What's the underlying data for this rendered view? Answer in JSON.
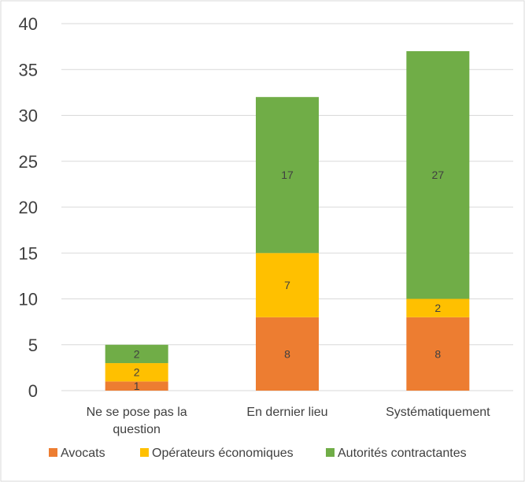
{
  "chart_data": {
    "type": "bar",
    "stacked": true,
    "categories": [
      "Ne se pose pas la question",
      "En dernier lieu",
      "Systématiquement"
    ],
    "category_lines": [
      [
        "Ne se pose pas la",
        "question"
      ],
      [
        "En dernier lieu"
      ],
      [
        "Systématiquement"
      ]
    ],
    "series": [
      {
        "name": "Avocats",
        "values": [
          1,
          8,
          8
        ],
        "color": "#ED7D31"
      },
      {
        "name": "Opérateurs économiques",
        "values": [
          2,
          7,
          2
        ],
        "color": "#FFC000"
      },
      {
        "name": "Autorités contractantes",
        "values": [
          2,
          17,
          27
        ],
        "color": "#70AD47"
      }
    ],
    "ylim": [
      0,
      40
    ],
    "yticks": [
      0,
      5,
      10,
      15,
      20,
      25,
      30,
      35,
      40
    ],
    "grid": true,
    "legend_position": "bottom",
    "title": "",
    "xlabel": "",
    "ylabel": ""
  }
}
